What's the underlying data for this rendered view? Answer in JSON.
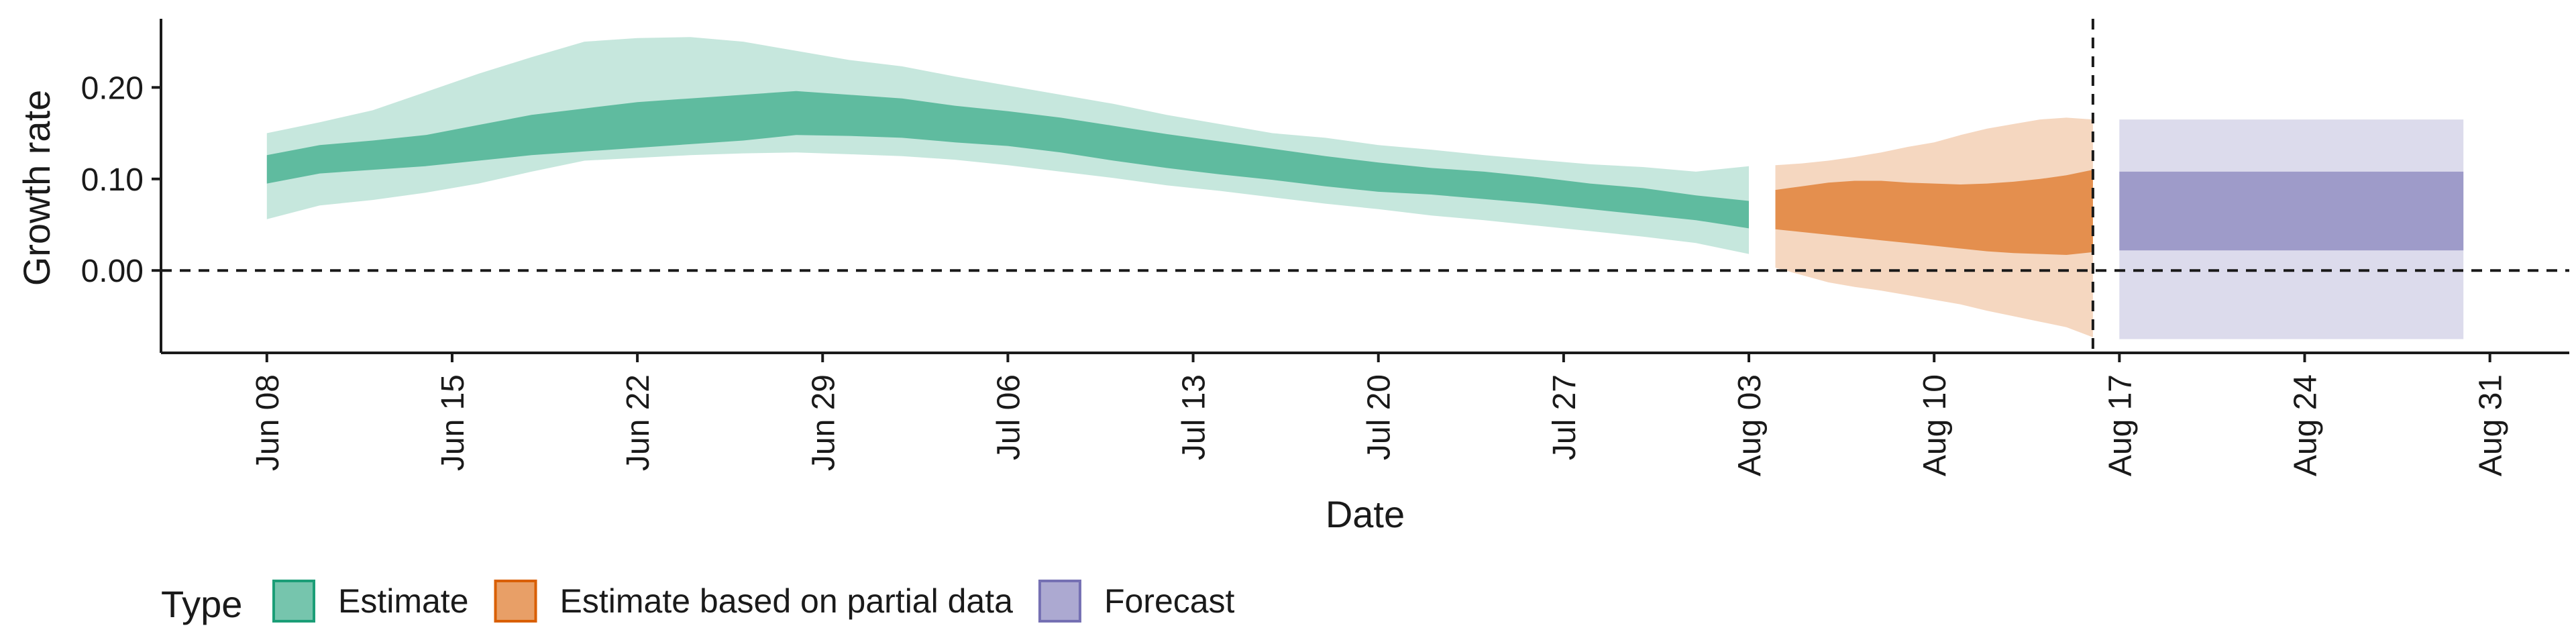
{
  "chart_data": {
    "type": "area",
    "title": "",
    "xlabel": "Date",
    "ylabel": "Growth rate",
    "x_ticks": [
      {
        "date": "2020-06-08",
        "label": "Jun 08"
      },
      {
        "date": "2020-06-15",
        "label": "Jun 15"
      },
      {
        "date": "2020-06-22",
        "label": "Jun 22"
      },
      {
        "date": "2020-06-29",
        "label": "Jun 29"
      },
      {
        "date": "2020-07-06",
        "label": "Jul 06"
      },
      {
        "date": "2020-07-13",
        "label": "Jul 13"
      },
      {
        "date": "2020-07-20",
        "label": "Jul 20"
      },
      {
        "date": "2020-07-27",
        "label": "Jul 27"
      },
      {
        "date": "2020-08-03",
        "label": "Aug 03"
      },
      {
        "date": "2020-08-10",
        "label": "Aug 10"
      },
      {
        "date": "2020-08-17",
        "label": "Aug 17"
      },
      {
        "date": "2020-08-24",
        "label": "Aug 24"
      },
      {
        "date": "2020-08-31",
        "label": "Aug 31"
      }
    ],
    "y_ticks": [
      {
        "value": 0.0,
        "label": "0.00"
      },
      {
        "value": 0.1,
        "label": "0.10"
      },
      {
        "value": 0.2,
        "label": "0.20"
      }
    ],
    "xlim": [
      "2020-06-04",
      "2020-09-03"
    ],
    "ylim": [
      -0.09,
      0.275
    ],
    "grid": false,
    "legend_position": "bottom-left",
    "legend_title": "Type",
    "reference_lines": [
      {
        "orientation": "horizontal",
        "value": 0.0,
        "style": "dashed"
      },
      {
        "orientation": "vertical",
        "value": "2020-08-16",
        "style": "dashed"
      }
    ],
    "series": [
      {
        "name": "Estimate",
        "color": "#1b9e77",
        "x": [
          "2020-06-08",
          "2020-06-10",
          "2020-06-12",
          "2020-06-14",
          "2020-06-16",
          "2020-06-18",
          "2020-06-20",
          "2020-06-22",
          "2020-06-24",
          "2020-06-26",
          "2020-06-28",
          "2020-06-30",
          "2020-07-02",
          "2020-07-04",
          "2020-07-06",
          "2020-07-08",
          "2020-07-10",
          "2020-07-12",
          "2020-07-14",
          "2020-07-16",
          "2020-07-18",
          "2020-07-20",
          "2020-07-22",
          "2020-07-24",
          "2020-07-26",
          "2020-07-28",
          "2020-07-30",
          "2020-08-01",
          "2020-08-03"
        ],
        "lower_90": [
          0.056,
          0.071,
          0.077,
          0.085,
          0.095,
          0.108,
          0.12,
          0.123,
          0.126,
          0.128,
          0.129,
          0.127,
          0.125,
          0.121,
          0.115,
          0.108,
          0.101,
          0.093,
          0.087,
          0.08,
          0.073,
          0.067,
          0.06,
          0.055,
          0.049,
          0.043,
          0.037,
          0.03,
          0.018
        ],
        "upper_90": [
          0.15,
          0.162,
          0.175,
          0.195,
          0.215,
          0.233,
          0.25,
          0.254,
          0.255,
          0.25,
          0.24,
          0.23,
          0.223,
          0.212,
          0.202,
          0.192,
          0.182,
          0.17,
          0.16,
          0.15,
          0.145,
          0.137,
          0.132,
          0.126,
          0.121,
          0.116,
          0.113,
          0.108,
          0.114
        ],
        "lower_50": [
          0.095,
          0.106,
          0.11,
          0.114,
          0.12,
          0.126,
          0.13,
          0.134,
          0.138,
          0.142,
          0.148,
          0.147,
          0.145,
          0.14,
          0.136,
          0.129,
          0.12,
          0.112,
          0.105,
          0.099,
          0.092,
          0.086,
          0.083,
          0.078,
          0.073,
          0.067,
          0.061,
          0.055,
          0.046
        ],
        "upper_50": [
          0.126,
          0.137,
          0.142,
          0.148,
          0.159,
          0.17,
          0.177,
          0.184,
          0.188,
          0.192,
          0.196,
          0.192,
          0.188,
          0.18,
          0.174,
          0.167,
          0.158,
          0.149,
          0.141,
          0.133,
          0.125,
          0.118,
          0.112,
          0.108,
          0.102,
          0.095,
          0.09,
          0.082,
          0.076
        ]
      },
      {
        "name": "Estimate based on partial data",
        "color": "#d95f02",
        "x": [
          "2020-08-04",
          "2020-08-05",
          "2020-08-06",
          "2020-08-07",
          "2020-08-08",
          "2020-08-09",
          "2020-08-10",
          "2020-08-11",
          "2020-08-12",
          "2020-08-13",
          "2020-08-14",
          "2020-08-15",
          "2020-08-16"
        ],
        "lower_90": [
          0.003,
          -0.005,
          -0.013,
          -0.018,
          -0.022,
          -0.027,
          -0.032,
          -0.037,
          -0.044,
          -0.05,
          -0.056,
          -0.062,
          -0.073
        ],
        "upper_90": [
          0.115,
          0.117,
          0.12,
          0.124,
          0.129,
          0.135,
          0.14,
          0.148,
          0.155,
          0.16,
          0.165,
          0.167,
          0.165
        ],
        "lower_50": [
          0.045,
          0.042,
          0.039,
          0.036,
          0.033,
          0.03,
          0.027,
          0.024,
          0.021,
          0.019,
          0.018,
          0.017,
          0.02
        ],
        "upper_50": [
          0.088,
          0.092,
          0.096,
          0.098,
          0.098,
          0.096,
          0.095,
          0.094,
          0.095,
          0.097,
          0.1,
          0.104,
          0.11
        ]
      },
      {
        "name": "Forecast",
        "color": "#7570b3",
        "x": [
          "2020-08-17",
          "2020-08-30"
        ],
        "lower_90": [
          -0.075,
          -0.075
        ],
        "upper_90": [
          0.165,
          0.165
        ],
        "lower_50": [
          0.022,
          0.022
        ],
        "upper_50": [
          0.108,
          0.108
        ]
      }
    ]
  }
}
